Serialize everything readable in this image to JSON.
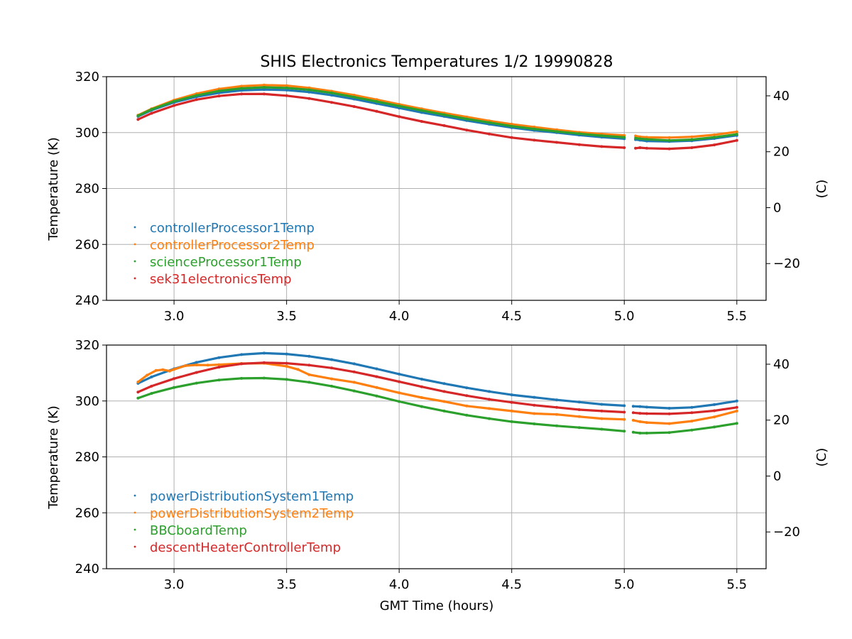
{
  "figure": {
    "title": "SHIS Electronics Temperatures 1/2 19990828",
    "xlabel": "GMT Time (hours)"
  },
  "chart_data": [
    {
      "type": "scatter",
      "ylabel": "Temperature (K)",
      "y2label": "(C)",
      "xlim": [
        2.7,
        5.63
      ],
      "ylim": [
        240,
        320
      ],
      "y2lim": [
        -33.15,
        46.85
      ],
      "xticks": [
        "3.0",
        "3.5",
        "4.0",
        "4.5",
        "5.0",
        "5.5"
      ],
      "yticks": [
        "240",
        "260",
        "280",
        "300",
        "320"
      ],
      "y2ticks": [
        "−20",
        "0",
        "20",
        "40"
      ],
      "grid": true,
      "legend_position": "lower-left",
      "series": [
        {
          "name": "controllerProcessor1Temp",
          "color": "#1f77b4",
          "x": [
            2.84,
            2.9,
            3.0,
            3.1,
            3.2,
            3.3,
            3.4,
            3.5,
            3.6,
            3.7,
            3.8,
            3.9,
            4.0,
            4.1,
            4.2,
            4.3,
            4.4,
            4.5,
            4.6,
            4.7,
            4.8,
            4.9,
            5.0,
            5.05,
            5.07,
            5.1,
            5.2,
            5.3,
            5.4,
            5.5
          ],
          "y": [
            305.8,
            308.0,
            310.8,
            312.8,
            314.2,
            315.1,
            315.4,
            315.2,
            314.5,
            313.4,
            312.0,
            310.4,
            308.8,
            307.2,
            305.8,
            304.3,
            303.0,
            301.8,
            300.8,
            300.0,
            299.1,
            298.4,
            297.8,
            297.5,
            297.3,
            297.0,
            296.8,
            297.1,
            297.9,
            299.0
          ]
        },
        {
          "name": "controllerProcessor2Temp",
          "color": "#ff7f0e",
          "x": [
            2.84,
            2.9,
            3.0,
            3.1,
            3.2,
            3.3,
            3.4,
            3.5,
            3.6,
            3.7,
            3.8,
            3.9,
            4.0,
            4.1,
            4.2,
            4.3,
            4.4,
            4.5,
            4.6,
            4.7,
            4.8,
            4.9,
            5.0,
            5.05,
            5.07,
            5.1,
            5.2,
            5.3,
            5.4,
            5.5
          ],
          "y": [
            306.2,
            308.5,
            311.6,
            313.9,
            315.6,
            316.6,
            317.0,
            316.8,
            316.0,
            314.8,
            313.4,
            311.8,
            310.1,
            308.5,
            307.0,
            305.6,
            304.2,
            303.0,
            302.0,
            301.0,
            300.1,
            299.5,
            299.0,
            298.8,
            298.5,
            298.3,
            298.2,
            298.5,
            299.2,
            300.3
          ]
        },
        {
          "name": "scienceProcessor1Temp",
          "color": "#2ca02c",
          "x": [
            2.84,
            2.9,
            3.0,
            3.1,
            3.2,
            3.3,
            3.4,
            3.5,
            3.6,
            3.7,
            3.8,
            3.9,
            4.0,
            4.1,
            4.2,
            4.3,
            4.4,
            4.5,
            4.6,
            4.7,
            4.8,
            4.9,
            5.0,
            5.05,
            5.07,
            5.1,
            5.2,
            5.3,
            5.4,
            5.5
          ],
          "y": [
            306.0,
            308.3,
            311.2,
            313.3,
            314.9,
            315.8,
            316.2,
            316.0,
            315.3,
            314.2,
            312.7,
            311.1,
            309.5,
            307.9,
            306.4,
            304.9,
            303.6,
            302.3,
            301.3,
            300.4,
            299.6,
            298.9,
            298.3,
            298.0,
            297.8,
            297.6,
            297.2,
            297.5,
            298.3,
            299.4
          ]
        },
        {
          "name": "sek31electronicsTemp",
          "color": "#d62728",
          "x": [
            2.84,
            2.9,
            3.0,
            3.1,
            3.2,
            3.3,
            3.4,
            3.5,
            3.6,
            3.7,
            3.8,
            3.9,
            4.0,
            4.1,
            4.2,
            4.3,
            4.4,
            4.5,
            4.6,
            4.7,
            4.8,
            4.9,
            5.0,
            5.05,
            5.07,
            5.1,
            5.2,
            5.3,
            5.4,
            5.5
          ],
          "y": [
            304.7,
            306.9,
            309.7,
            311.8,
            313.1,
            313.8,
            313.8,
            313.2,
            312.2,
            310.8,
            309.3,
            307.6,
            305.7,
            304.0,
            302.5,
            300.9,
            299.5,
            298.2,
            297.3,
            296.5,
            295.7,
            295.0,
            294.6,
            294.4,
            294.6,
            294.4,
            294.2,
            294.6,
            295.6,
            297.2
          ]
        }
      ]
    },
    {
      "type": "scatter",
      "ylabel": "Temperature (K)",
      "y2label": "(C)",
      "xlim": [
        2.7,
        5.63
      ],
      "ylim": [
        240,
        320
      ],
      "y2lim": [
        -33.15,
        46.85
      ],
      "xticks": [
        "3.0",
        "3.5",
        "4.0",
        "4.5",
        "5.0",
        "5.5"
      ],
      "yticks": [
        "240",
        "260",
        "280",
        "300",
        "320"
      ],
      "y2ticks": [
        "−20",
        "0",
        "20",
        "40"
      ],
      "grid": true,
      "legend_position": "lower-left",
      "series": [
        {
          "name": "powerDistributionSystem1Temp",
          "color": "#1f77b4",
          "x": [
            2.84,
            2.9,
            3.0,
            3.1,
            3.2,
            3.3,
            3.4,
            3.5,
            3.6,
            3.7,
            3.8,
            3.9,
            4.0,
            4.1,
            4.2,
            4.3,
            4.4,
            4.5,
            4.6,
            4.7,
            4.8,
            4.9,
            5.0,
            5.04,
            5.07,
            5.1,
            5.2,
            5.3,
            5.4,
            5.5
          ],
          "y": [
            306.3,
            308.6,
            311.5,
            313.8,
            315.5,
            316.6,
            317.1,
            316.8,
            316.0,
            314.8,
            313.3,
            311.5,
            309.6,
            307.8,
            306.2,
            304.7,
            303.4,
            302.2,
            301.3,
            300.4,
            299.6,
            298.8,
            298.3,
            298.1,
            298.0,
            297.8,
            297.4,
            297.7,
            298.7,
            300.0
          ]
        },
        {
          "name": "powerDistributionSystem2Temp",
          "color": "#ff7f0e",
          "x": [
            2.84,
            2.88,
            2.92,
            2.95,
            2.98,
            3.0,
            3.05,
            3.1,
            3.15,
            3.2,
            3.3,
            3.4,
            3.5,
            3.55,
            3.6,
            3.7,
            3.8,
            3.9,
            4.0,
            4.1,
            4.2,
            4.3,
            4.4,
            4.5,
            4.6,
            4.7,
            4.8,
            4.9,
            5.0,
            5.04,
            5.07,
            5.1,
            5.2,
            5.3,
            5.4,
            5.5
          ],
          "y": [
            306.8,
            309.2,
            310.9,
            311.2,
            310.7,
            311.3,
            312.6,
            312.9,
            312.8,
            313.0,
            313.4,
            313.5,
            312.4,
            311.3,
            309.4,
            307.9,
            306.7,
            304.8,
            302.9,
            301.2,
            299.8,
            298.2,
            297.3,
            296.4,
            295.5,
            295.2,
            294.4,
            293.7,
            293.4,
            293.1,
            292.6,
            292.3,
            291.9,
            292.8,
            294.3,
            296.4
          ]
        },
        {
          "name": "BBCboardTemp",
          "color": "#2ca02c",
          "x": [
            2.84,
            2.9,
            3.0,
            3.1,
            3.2,
            3.3,
            3.4,
            3.5,
            3.6,
            3.7,
            3.8,
            3.9,
            4.0,
            4.1,
            4.2,
            4.3,
            4.4,
            4.5,
            4.6,
            4.7,
            4.8,
            4.9,
            5.0,
            5.04,
            5.07,
            5.1,
            5.2,
            5.3,
            5.4,
            5.5
          ],
          "y": [
            301.0,
            302.7,
            304.8,
            306.4,
            307.5,
            308.1,
            308.2,
            307.7,
            306.7,
            305.3,
            303.6,
            301.8,
            299.8,
            298.0,
            296.4,
            294.9,
            293.7,
            292.6,
            291.8,
            291.1,
            290.5,
            289.9,
            289.2,
            288.8,
            288.5,
            288.5,
            288.7,
            289.6,
            290.7,
            292.0
          ]
        },
        {
          "name": "descentHeaterControllerTemp",
          "color": "#d62728",
          "x": [
            2.84,
            2.9,
            3.0,
            3.1,
            3.2,
            3.3,
            3.4,
            3.5,
            3.6,
            3.7,
            3.8,
            3.9,
            4.0,
            4.1,
            4.2,
            4.3,
            4.4,
            4.5,
            4.6,
            4.7,
            4.8,
            4.9,
            5.0,
            5.04,
            5.07,
            5.1,
            5.2,
            5.3,
            5.4,
            5.5
          ],
          "y": [
            303.2,
            305.3,
            308.0,
            310.2,
            312.1,
            313.3,
            313.7,
            313.5,
            312.8,
            311.8,
            310.4,
            308.7,
            306.9,
            305.1,
            303.4,
            301.9,
            300.6,
            299.5,
            298.5,
            297.7,
            296.9,
            296.4,
            296.0,
            295.8,
            295.6,
            295.5,
            295.4,
            295.8,
            296.5,
            297.7
          ]
        }
      ]
    }
  ]
}
